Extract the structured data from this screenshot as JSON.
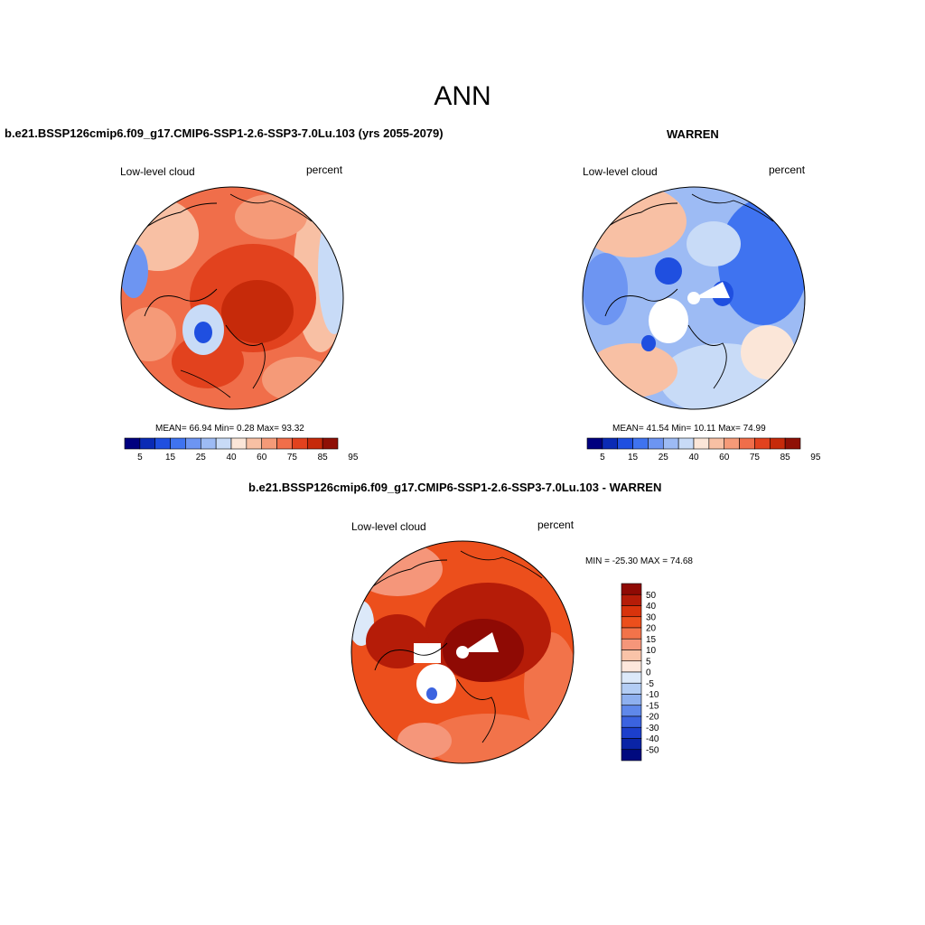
{
  "main_title": "ANN",
  "panels": [
    {
      "title": "b.e21.BSSP126cmip6.f09_g17.CMIP6-SSP1-2.6-SSP3-7.0Lu.103 (yrs 2055-2079)",
      "left_label": "Low-level cloud",
      "right_label": "percent",
      "stats": "MEAN=  66.94  Min=   0.28  Max=  93.32",
      "colorbar_labels": [
        "5",
        "15",
        "25",
        "40",
        "60",
        "75",
        "85",
        "95"
      ]
    },
    {
      "title": "WARREN",
      "left_label": "Low-level cloud",
      "right_label": "percent",
      "stats": "MEAN=  41.54  Min=  10.11  Max=  74.99",
      "colorbar_labels": [
        "5",
        "15",
        "25",
        "40",
        "60",
        "75",
        "85",
        "95"
      ]
    },
    {
      "title": "b.e21.BSSP126cmip6.f09_g17.CMIP6-SSP1-2.6-SSP3-7.0Lu.103 - WARREN",
      "left_label": "Low-level cloud",
      "right_label": "percent",
      "stats": "MIN = -25.30 MAX =  74.68",
      "colorbar_labels": [
        "50",
        "40",
        "30",
        "20",
        "15",
        "10",
        "5",
        "0",
        "-5",
        "-10",
        "-15",
        "-20",
        "-30",
        "-40",
        "-50"
      ]
    }
  ],
  "colors": {
    "abs_scale": [
      "#00007f",
      "#0a2bb5",
      "#1f4fe0",
      "#3f73f0",
      "#6d95f2",
      "#9dbbf4",
      "#c8dbf7",
      "#fbe6d8",
      "#f8c0a4",
      "#f59a78",
      "#f06e4a",
      "#e2421e",
      "#c62a0a",
      "#8f1006"
    ],
    "diff_scale": [
      "#8f0a04",
      "#b51c08",
      "#d8330c",
      "#ec4f1c",
      "#f2734a",
      "#f5967a",
      "#f9c3a8",
      "#fde7dc",
      "#dce9f9",
      "#b3cdf4",
      "#8eb0ef",
      "#5f88ea",
      "#3b63e0",
      "#1c3fcc",
      "#0a24a6",
      "#000a7f"
    ]
  }
}
